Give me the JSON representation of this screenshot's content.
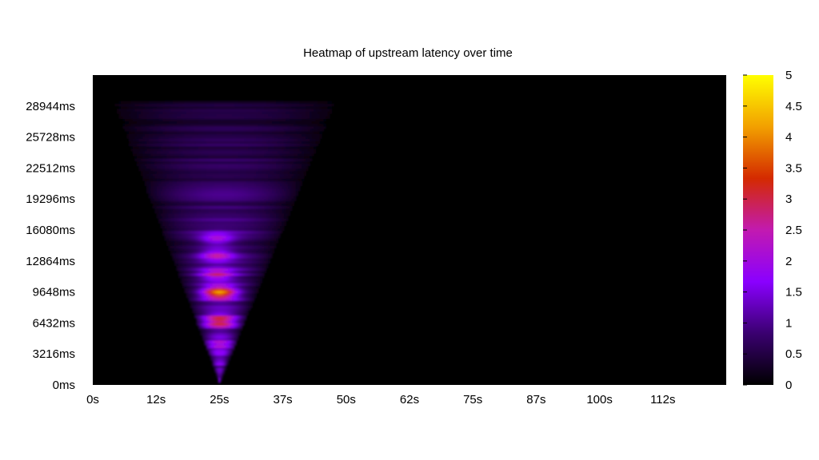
{
  "chart_data": {
    "type": "heatmap",
    "title": "Heatmap of upstream latency over time",
    "xlabel": "",
    "ylabel": "",
    "x_ticks": [
      "0s",
      "12s",
      "25s",
      "37s",
      "50s",
      "62s",
      "75s",
      "87s",
      "100s",
      "112s"
    ],
    "x_tick_values": [
      0,
      12.5,
      25,
      37.5,
      50,
      62.5,
      75,
      87.5,
      100,
      112.5
    ],
    "xlim": [
      0,
      125
    ],
    "y_ticks": [
      "0ms",
      "3216ms",
      "6432ms",
      "9648ms",
      "12864ms",
      "16080ms",
      "19296ms",
      "22512ms",
      "25728ms",
      "28944ms"
    ],
    "y_tick_values": [
      0,
      3216,
      6432,
      9648,
      12864,
      16080,
      19296,
      22512,
      25728,
      28944
    ],
    "ylim": [
      0,
      32160
    ],
    "colorbar": {
      "ticks": [
        "0",
        "0.5",
        "1",
        "1.5",
        "2",
        "2.5",
        "3",
        "3.5",
        "4",
        "4.5",
        "5"
      ],
      "range": [
        0,
        5
      ],
      "colors": [
        "#000000",
        "#3a0070",
        "#8a00ff",
        "#c21ab0",
        "#d42a00",
        "#f2a000",
        "#ffff00"
      ]
    },
    "background_color": "#000000",
    "grid": false,
    "legend": "colorbar-right",
    "description_data": {
      "wedge_apex_time": 25,
      "wedge_apex_latency": 200,
      "wedge_top_latency": 29500,
      "wedge_top_time_range": [
        4,
        48
      ],
      "hotspots": [
        {
          "time": 25,
          "latency": 9648,
          "intensity": 4.5
        },
        {
          "time": 25,
          "latency": 6700,
          "intensity": 3.4
        },
        {
          "time": 24.5,
          "latency": 11500,
          "intensity": 3.0
        },
        {
          "time": 24.5,
          "latency": 13500,
          "intensity": 2.9
        },
        {
          "time": 24.5,
          "latency": 15200,
          "intensity": 2.6
        },
        {
          "time": 25,
          "latency": 4200,
          "intensity": 2.4
        }
      ]
    }
  }
}
